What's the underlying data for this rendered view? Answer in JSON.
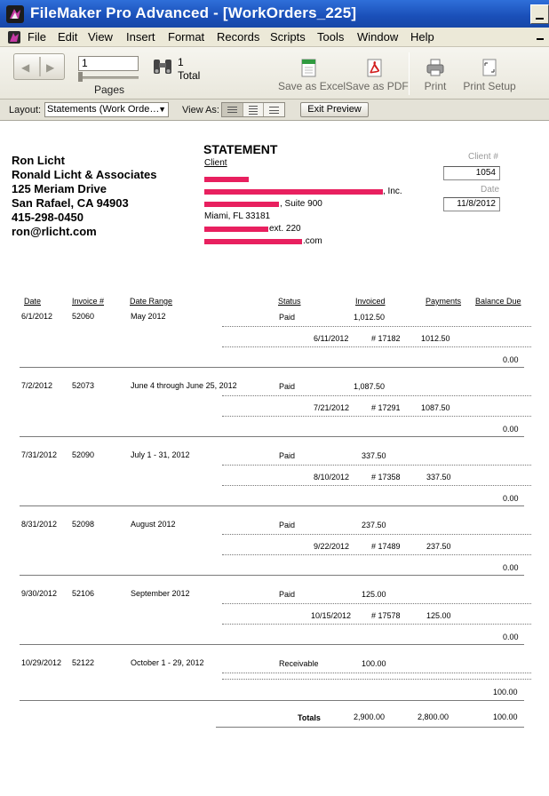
{
  "window": {
    "title": "FileMaker Pro Advanced - [WorkOrders_225]"
  },
  "menu": [
    "File",
    "Edit",
    "View",
    "Insert",
    "Format",
    "Records",
    "Scripts",
    "Tools",
    "Window",
    "Help"
  ],
  "toolbar": {
    "record_value": "1",
    "pages_label": "Pages",
    "count": "1",
    "total_label": "Total",
    "save_excel": "Save as Excel",
    "save_pdf": "Save as PDF",
    "print": "Print",
    "print_setup": "Print Setup"
  },
  "layoutbar": {
    "layout_label": "Layout:",
    "layout_value": "Statements (Work Orde…",
    "view_as_label": "View As:",
    "exit_preview": "Exit Preview"
  },
  "firm": {
    "name": "Ron Licht",
    "company": "Ronald Licht & Associates",
    "street": "125 Meriam Drive",
    "city": "San Rafael, CA  94903",
    "phone": "415-298-0450",
    "email": "ron@rlicht.com"
  },
  "statement": {
    "title": "STATEMENT",
    "client_label": "Client",
    "client_lines": [
      "",
      ", Inc.",
      ", Suite 900",
      "Miami, FL  33181",
      "ext. 220",
      ".com"
    ],
    "client_num_label": "Client #",
    "client_num": "1054",
    "date_label": "Date",
    "date": "11/8/2012"
  },
  "columns": {
    "date": "Date",
    "invoice": "Invoice #",
    "range": "Date Range",
    "status": "Status",
    "invoiced": "Invoiced",
    "payments": "Payments",
    "balance": "Balance Due"
  },
  "rows": [
    {
      "date": "6/1/2012",
      "invoice": "52060",
      "range": "May 2012",
      "status": "Paid",
      "invoiced": "1,012.50",
      "pay_date": "6/11/2012",
      "pay_ref": "# 17182",
      "pay_amt": "1012.50",
      "balance": "0.00"
    },
    {
      "date": "7/2/2012",
      "invoice": "52073",
      "range": "June  4 through June 25, 2012",
      "status": "Paid",
      "invoiced": "1,087.50",
      "pay_date": "7/21/2012",
      "pay_ref": "# 17291",
      "pay_amt": "1087.50",
      "balance": "0.00"
    },
    {
      "date": "7/31/2012",
      "invoice": "52090",
      "range": "July 1 - 31, 2012",
      "status": "Paid",
      "invoiced": "337.50",
      "pay_date": "8/10/2012",
      "pay_ref": "# 17358",
      "pay_amt": "337.50",
      "balance": "0.00"
    },
    {
      "date": "8/31/2012",
      "invoice": "52098",
      "range": "August 2012",
      "status": "Paid",
      "invoiced": "237.50",
      "pay_date": "9/22/2012",
      "pay_ref": "# 17489",
      "pay_amt": "237.50",
      "balance": "0.00"
    },
    {
      "date": "9/30/2012",
      "invoice": "52106",
      "range": "September 2012",
      "status": "Paid",
      "invoiced": "125.00",
      "pay_date": "10/15/2012",
      "pay_ref": "# 17578",
      "pay_amt": "125.00",
      "balance": "0.00"
    },
    {
      "date": "10/29/2012",
      "invoice": "52122",
      "range": "October 1 - 29, 2012",
      "status": "Receivable",
      "invoiced": "100.00",
      "pay_date": "",
      "pay_ref": "",
      "pay_amt": "",
      "balance": "100.00"
    }
  ],
  "totals": {
    "label": "Totals",
    "invoiced": "2,900.00",
    "payments": "2,800.00",
    "balance": "100.00"
  },
  "colors": {
    "titlebar": "#1f57c3",
    "redaction": "#e8205f",
    "chrome": "#ece9d8"
  }
}
